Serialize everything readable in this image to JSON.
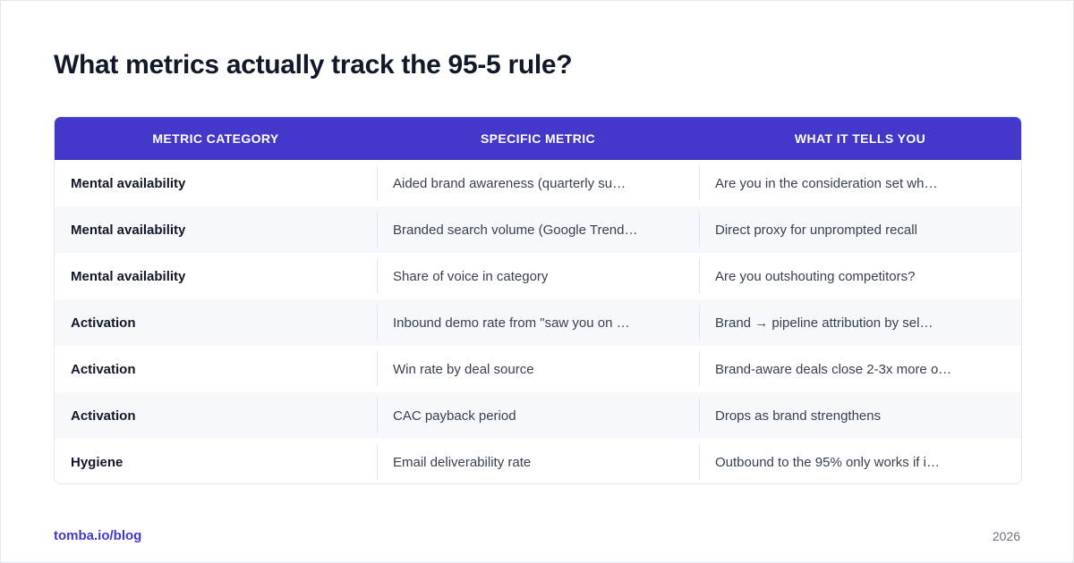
{
  "title": "What metrics actually track the 95-5 rule?",
  "table": {
    "headers": [
      "METRIC CATEGORY",
      "SPECIFIC METRIC",
      "WHAT IT TELLS YOU"
    ],
    "rows": [
      [
        "Mental availability",
        "Aided brand awareness (quarterly su…",
        "Are you in the consideration set wh…"
      ],
      [
        "Mental availability",
        "Branded search volume (Google Trend…",
        "Direct proxy for unprompted recall"
      ],
      [
        "Mental availability",
        "Share of voice in category",
        "Are you outshouting competitors?"
      ],
      [
        "Activation",
        "Inbound demo rate from \"saw you on …",
        "Brand → pipeline attribution by sel…"
      ],
      [
        "Activation",
        "Win rate by deal source",
        "Brand-aware deals close 2-3x more o…"
      ],
      [
        "Activation",
        "CAC payback period",
        "Drops as brand strengthens"
      ],
      [
        "Hygiene",
        "Email deliverability rate",
        "Outbound to the 95% only works if i…"
      ]
    ]
  },
  "footer": {
    "link": "tomba.io/blog",
    "year": "2026"
  },
  "colors": {
    "header_bg": "#4338ca",
    "link": "#4338ca",
    "row_alt_bg": "#f7f8fb"
  }
}
